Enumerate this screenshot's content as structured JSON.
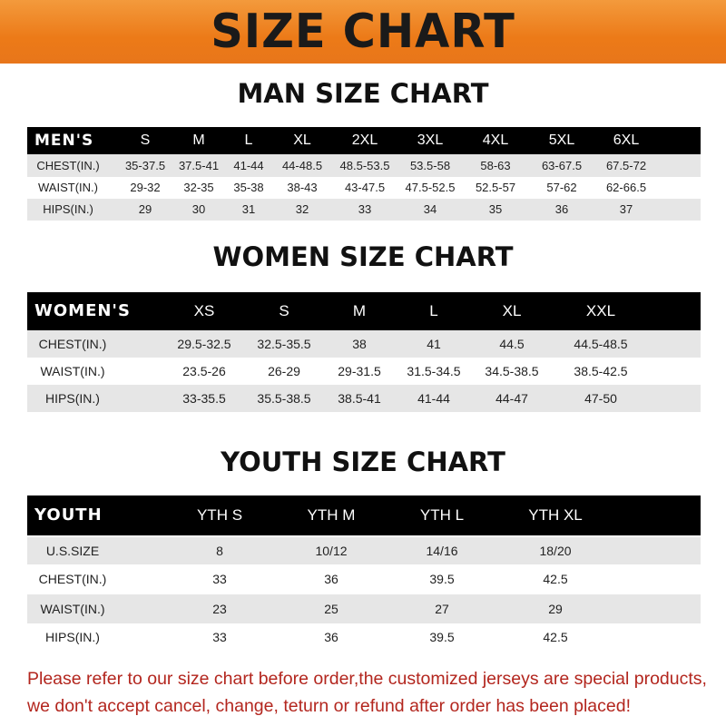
{
  "title": "SIZE CHART",
  "men": {
    "heading": "MAN SIZE CHART",
    "columns": [
      "MEN'S",
      "S",
      "M",
      "L",
      "XL",
      "2XL",
      "3XL",
      "4XL",
      "5XL",
      "6XL"
    ],
    "rows": [
      [
        "CHEST(IN.)",
        "35-37.5",
        "37.5-41",
        "41-44",
        "44-48.5",
        "48.5-53.5",
        "53.5-58",
        "58-63",
        "63-67.5",
        "67.5-72"
      ],
      [
        "WAIST(IN.)",
        "29-32",
        "32-35",
        "35-38",
        "38-43",
        "43-47.5",
        "47.5-52.5",
        "52.5-57",
        "57-62",
        "62-66.5"
      ],
      [
        "HIPS(IN.)",
        "29",
        "30",
        "31",
        "32",
        "33",
        "34",
        "35",
        "36",
        "37"
      ]
    ]
  },
  "women": {
    "heading": "WOMEN SIZE CHART",
    "columns": [
      "WOMEN'S",
      "XS",
      "S",
      "M",
      "L",
      "XL",
      "XXL"
    ],
    "rows": [
      [
        "CHEST(IN.)",
        "29.5-32.5",
        "32.5-35.5",
        "38",
        "41",
        "44.5",
        "44.5-48.5"
      ],
      [
        "WAIST(IN.)",
        "23.5-26",
        "26-29",
        "29-31.5",
        "31.5-34.5",
        "34.5-38.5",
        "38.5-42.5"
      ],
      [
        "HIPS(IN.)",
        "33-35.5",
        "35.5-38.5",
        "38.5-41",
        "41-44",
        "44-47",
        "47-50"
      ]
    ]
  },
  "youth": {
    "heading": "YOUTH SIZE CHART",
    "columns": [
      "YOUTH",
      "YTH S",
      "YTH M",
      "YTH L",
      "YTH XL"
    ],
    "rows": [
      [
        "U.S.SIZE",
        "8",
        "10/12",
        "14/16",
        "18/20"
      ],
      [
        "CHEST(IN.)",
        "33",
        "36",
        "39.5",
        "42.5"
      ],
      [
        "WAIST(IN.)",
        "23",
        "25",
        "27",
        "29"
      ],
      [
        "HIPS(IN.)",
        "33",
        "36",
        "39.5",
        "42.5"
      ]
    ]
  },
  "notice": [
    "Please refer to our size chart before order,the customized jerseys are special products,",
    "we don't accept cancel, change, teturn or refund after order has been placed!"
  ],
  "colors": {
    "banner": "#ec7a18",
    "notice": "#b3261e",
    "header_row": "#000000"
  }
}
